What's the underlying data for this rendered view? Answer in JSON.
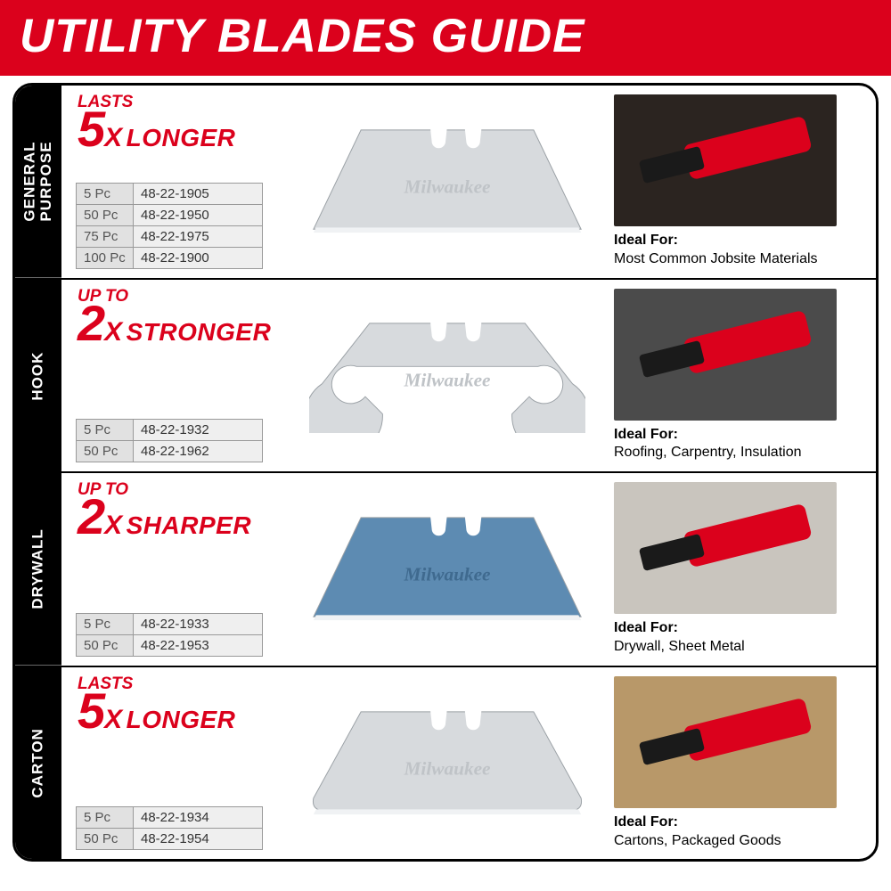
{
  "colors": {
    "header_bg": "#db011c",
    "accent": "#db011c",
    "black": "#000000",
    "white": "#ffffff",
    "cell_bg": "#efefef",
    "cell_label_bg": "#e1e1e1",
    "blade_silver": "#d7dadd",
    "blade_blue": "#5d8bb2",
    "border_gray": "#999999"
  },
  "title": "UTILITY BLADES GUIDE",
  "brand_text": "Milwaukee",
  "ideal_label": "Ideal For:",
  "rows": [
    {
      "tab": "GENERAL\nPURPOSE",
      "claim_prefix": "LASTS",
      "claim_big": "5",
      "claim_mult": "X",
      "claim_word": "LONGER",
      "blade_type": "trapezoid",
      "blade_fill": "#d7dadd",
      "skus": [
        {
          "qty": "5 Pc",
          "sku": "48-22-1905"
        },
        {
          "qty": "50 Pc",
          "sku": "48-22-1950"
        },
        {
          "qty": "75 Pc",
          "sku": "48-22-1975"
        },
        {
          "qty": "100 Pc",
          "sku": "48-22-1900"
        }
      ],
      "ideal_text": "Most Common Jobsite Materials",
      "thumb_bg": "#2b2420"
    },
    {
      "tab": "HOOK",
      "claim_prefix": "UP TO",
      "claim_big": "2",
      "claim_mult": "X",
      "claim_word": "STRONGER",
      "blade_type": "hook",
      "blade_fill": "#d7dadd",
      "skus": [
        {
          "qty": "5 Pc",
          "sku": "48-22-1932"
        },
        {
          "qty": "50 Pc",
          "sku": "48-22-1962"
        }
      ],
      "ideal_text": "Roofing, Carpentry, Insulation",
      "thumb_bg": "#4b4b4b"
    },
    {
      "tab": "DRYWALL",
      "claim_prefix": "UP TO",
      "claim_big": "2",
      "claim_mult": "X",
      "claim_word": "SHARPER",
      "blade_type": "trapezoid",
      "blade_fill": "#5d8bb2",
      "skus": [
        {
          "qty": "5 Pc",
          "sku": "48-22-1933"
        },
        {
          "qty": "50 Pc",
          "sku": "48-22-1953"
        }
      ],
      "ideal_text": "Drywall, Sheet Metal",
      "thumb_bg": "#c9c5be"
    },
    {
      "tab": "CARTON",
      "claim_prefix": "LASTS",
      "claim_big": "5",
      "claim_mult": "X",
      "claim_word": "LONGER",
      "blade_type": "rounded",
      "blade_fill": "#d7dadd",
      "skus": [
        {
          "qty": "5 Pc",
          "sku": "48-22-1934"
        },
        {
          "qty": "50 Pc",
          "sku": "48-22-1954"
        }
      ],
      "ideal_text": "Cartons, Packaged Goods",
      "thumb_bg": "#b89869"
    }
  ]
}
